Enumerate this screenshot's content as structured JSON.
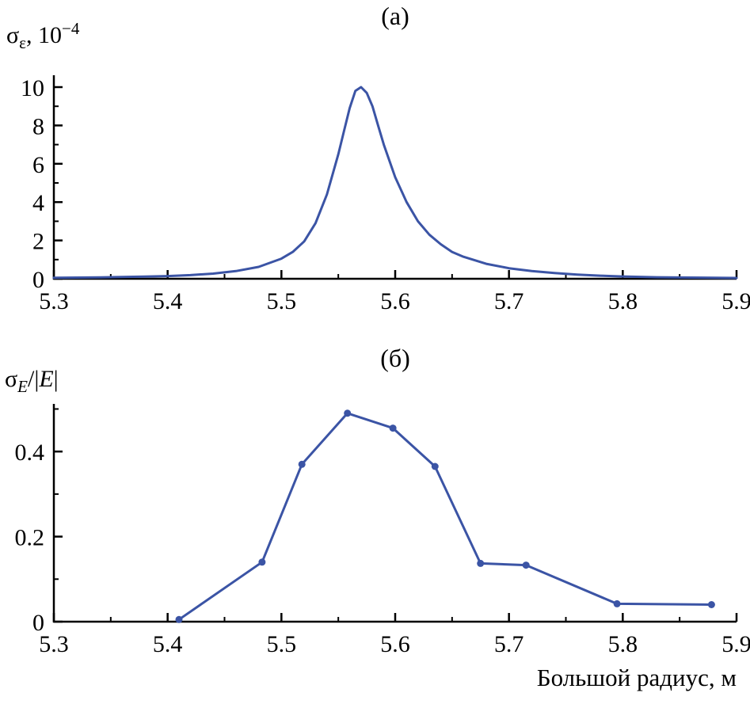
{
  "charts_meta": {
    "line_color": "#3b54a5",
    "axis_color": "#000000",
    "background": "#ffffff"
  },
  "chart_data": [
    {
      "id": "a",
      "type": "line",
      "title": "(а)",
      "ylabel": "σ_ε, 10^−4",
      "ylabel_parts": {
        "sigma": "σ",
        "sub": "ε",
        "mid": ", 10",
        "exp": "−4"
      },
      "xlabel": "",
      "xlim": [
        5.3,
        5.9
      ],
      "ylim": [
        0,
        10.62
      ],
      "xticks": [
        5.3,
        5.4,
        5.5,
        5.6,
        5.7,
        5.8,
        5.9
      ],
      "xminor_step": 0.05,
      "yticks": [
        0,
        2,
        4,
        6,
        8,
        10
      ],
      "yminor_step": 1,
      "grid": false,
      "legend": false,
      "markers": false,
      "points": [
        [
          5.3,
          0.05
        ],
        [
          5.32,
          0.06
        ],
        [
          5.34,
          0.07
        ],
        [
          5.36,
          0.09
        ],
        [
          5.38,
          0.11
        ],
        [
          5.4,
          0.14
        ],
        [
          5.42,
          0.19
        ],
        [
          5.44,
          0.27
        ],
        [
          5.46,
          0.4
        ],
        [
          5.48,
          0.62
        ],
        [
          5.5,
          1.05
        ],
        [
          5.51,
          1.4
        ],
        [
          5.52,
          1.95
        ],
        [
          5.53,
          2.9
        ],
        [
          5.54,
          4.4
        ],
        [
          5.55,
          6.5
        ],
        [
          5.555,
          7.7
        ],
        [
          5.56,
          8.9
        ],
        [
          5.565,
          9.8
        ],
        [
          5.57,
          10.0
        ],
        [
          5.575,
          9.7
        ],
        [
          5.58,
          9.0
        ],
        [
          5.585,
          8.0
        ],
        [
          5.59,
          7.0
        ],
        [
          5.6,
          5.3
        ],
        [
          5.61,
          4.0
        ],
        [
          5.62,
          3.0
        ],
        [
          5.63,
          2.3
        ],
        [
          5.64,
          1.8
        ],
        [
          5.65,
          1.4
        ],
        [
          5.66,
          1.15
        ],
        [
          5.68,
          0.78
        ],
        [
          5.7,
          0.55
        ],
        [
          5.72,
          0.4
        ],
        [
          5.74,
          0.3
        ],
        [
          5.76,
          0.22
        ],
        [
          5.78,
          0.16
        ],
        [
          5.8,
          0.12
        ],
        [
          5.83,
          0.08
        ],
        [
          5.86,
          0.06
        ],
        [
          5.9,
          0.04
        ]
      ]
    },
    {
      "id": "b",
      "type": "line",
      "title": "(б)",
      "ylabel": "σ_E/|E|",
      "ylabel_parts": {
        "sigma": "σ",
        "sub": "E",
        "slash": "/|",
        "E": "E",
        "bar": "|"
      },
      "xlabel": "Большой радиус, м",
      "xlim": [
        5.3,
        5.9
      ],
      "ylim": [
        0,
        0.512
      ],
      "xticks": [
        5.3,
        5.4,
        5.5,
        5.6,
        5.7,
        5.8,
        5.9
      ],
      "xminor_step": 0.05,
      "yticks": [
        0,
        0.2,
        0.4
      ],
      "yminor_step": 0.1,
      "grid": false,
      "legend": false,
      "markers": true,
      "points": [
        [
          5.41,
          0.005
        ],
        [
          5.483,
          0.14
        ],
        [
          5.518,
          0.37
        ],
        [
          5.558,
          0.49
        ],
        [
          5.598,
          0.455
        ],
        [
          5.635,
          0.365
        ],
        [
          5.675,
          0.137
        ],
        [
          5.715,
          0.133
        ],
        [
          5.795,
          0.042
        ],
        [
          5.878,
          0.04
        ]
      ]
    }
  ]
}
